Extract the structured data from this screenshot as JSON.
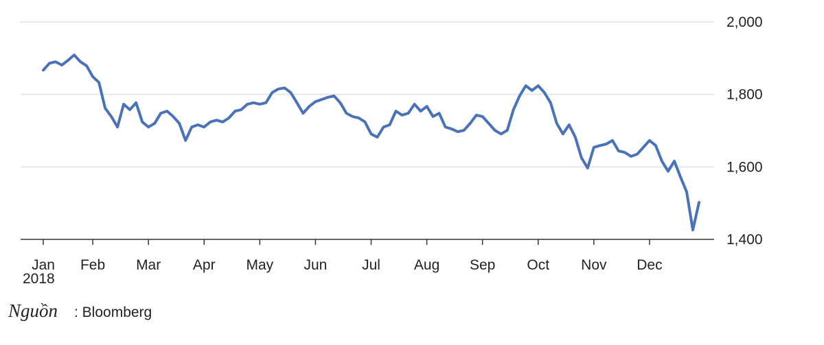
{
  "chart_data": {
    "type": "line",
    "categories": [
      "Jan",
      null,
      null,
      null,
      null,
      null,
      null,
      null,
      "Feb",
      null,
      null,
      null,
      null,
      null,
      null,
      null,
      null,
      "Mar",
      null,
      null,
      null,
      null,
      null,
      null,
      null,
      null,
      "Apr",
      null,
      null,
      null,
      null,
      null,
      null,
      null,
      null,
      "May",
      null,
      null,
      null,
      null,
      null,
      null,
      null,
      null,
      "Jun",
      null,
      null,
      null,
      null,
      null,
      null,
      null,
      null,
      "Jul",
      null,
      null,
      null,
      null,
      null,
      null,
      null,
      null,
      "Aug",
      null,
      null,
      null,
      null,
      null,
      null,
      null,
      null,
      "Sep",
      null,
      null,
      null,
      null,
      null,
      null,
      null,
      null,
      "Oct",
      null,
      null,
      null,
      null,
      null,
      null,
      null,
      null,
      "Nov",
      null,
      null,
      null,
      null,
      null,
      null,
      null,
      null,
      "Dec",
      null,
      null,
      null,
      null,
      null,
      null,
      null,
      null
    ],
    "year_label": "2018",
    "series": [
      {
        "color": "#4a72b8",
        "values": [
          1867,
          1886,
          1890,
          1881,
          1894,
          1909,
          1890,
          1879,
          1849,
          1833,
          1762,
          1739,
          1710,
          1773,
          1758,
          1777,
          1724,
          1710,
          1720,
          1748,
          1754,
          1739,
          1720,
          1673,
          1710,
          1716,
          1710,
          1724,
          1729,
          1724,
          1735,
          1754,
          1758,
          1773,
          1777,
          1773,
          1777,
          1805,
          1815,
          1818,
          1805,
          1777,
          1748,
          1767,
          1780,
          1786,
          1792,
          1796,
          1777,
          1748,
          1739,
          1735,
          1724,
          1691,
          1682,
          1710,
          1716,
          1754,
          1743,
          1748,
          1773,
          1754,
          1767,
          1739,
          1748,
          1710,
          1705,
          1697,
          1701,
          1720,
          1743,
          1739,
          1720,
          1701,
          1691,
          1701,
          1758,
          1796,
          1824,
          1811,
          1824,
          1805,
          1777,
          1720,
          1691,
          1716,
          1682,
          1625,
          1597,
          1654,
          1659,
          1663,
          1673,
          1644,
          1640,
          1629,
          1635,
          1654,
          1673,
          1659,
          1616,
          1588,
          1616,
          1572,
          1531,
          1426,
          1502
        ]
      }
    ],
    "ylim": [
      1400,
      2000
    ],
    "yticks": [
      {
        "value": 1400,
        "label": "1,400"
      },
      {
        "value": 1600,
        "label": "1,600"
      },
      {
        "value": 1800,
        "label": "1,800"
      },
      {
        "value": 2000,
        "label": "2,000"
      }
    ],
    "grid": true,
    "source_label": "Nguồn",
    "source_text": ": Bloomberg"
  }
}
